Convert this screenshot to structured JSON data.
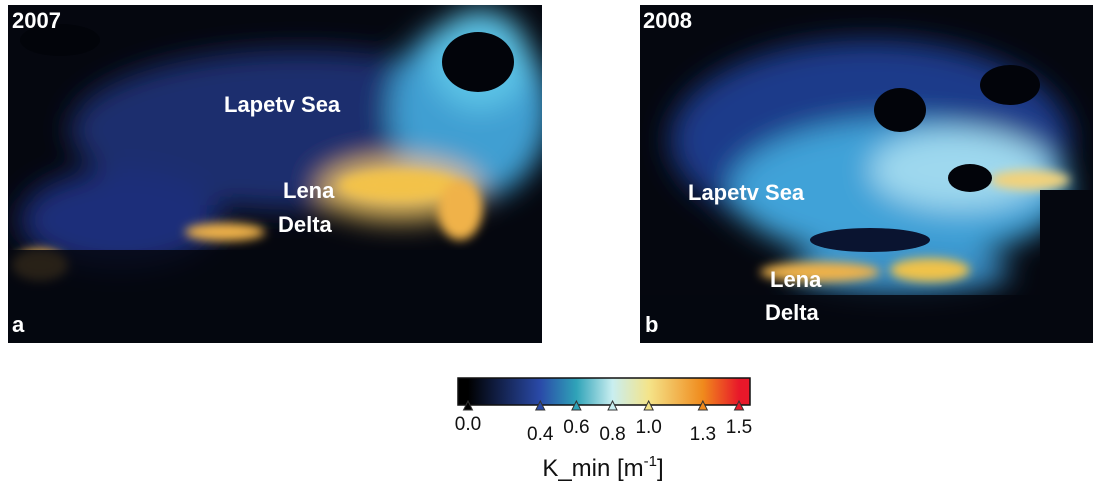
{
  "panels": [
    {
      "year": "2007",
      "letter": "a",
      "sea": "Lapetv Sea",
      "delta": [
        "Lena",
        "Delta"
      ]
    },
    {
      "year": "2008",
      "letter": "b",
      "sea": "Lapetv Sea",
      "delta": [
        "Lena",
        "Delta"
      ]
    }
  ],
  "colorbar": {
    "lim": [
      0,
      1.5
    ],
    "ticks": [
      {
        "value": 0,
        "label": "0.0"
      },
      0.4,
      0.6,
      0.8,
      {
        "value": 1,
        "label": "1.0"
      },
      1.3,
      1.5
    ],
    "colors": [
      "#000000",
      "#2a4aa8",
      "#2fa3b8",
      "#c9eef0",
      "#f4e48a",
      "#f08a1c",
      "#e8182a"
    ],
    "label": "K_min [m",
    "label_sup": "-1",
    "label_end": "]"
  }
}
